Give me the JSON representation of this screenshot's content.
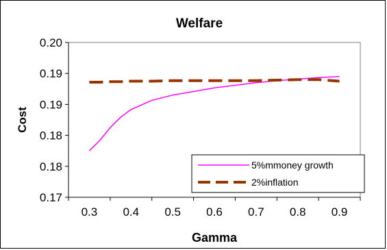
{
  "chart_data": {
    "type": "line",
    "title": "Welfare",
    "xlabel": "Gamma",
    "ylabel": "Cost",
    "xlim": [
      0.25,
      0.95
    ],
    "ylim": [
      0.17,
      0.2
    ],
    "x_ticks": [
      "0.3",
      "0.4",
      "0.5",
      "0.6",
      "0.7",
      "0.8",
      "0.9"
    ],
    "y_ticks": [
      "0.17",
      "0.18",
      "0.18",
      "0.19",
      "0.19",
      "0.20"
    ],
    "grid": false,
    "legend_position": "bottom-right",
    "x": [
      0.3,
      0.325,
      0.35,
      0.375,
      0.4,
      0.45,
      0.5,
      0.55,
      0.6,
      0.65,
      0.7,
      0.75,
      0.8,
      0.85,
      0.9
    ],
    "series": [
      {
        "name": "5%mmoney growth",
        "color": "#ff00ff",
        "style": "solid",
        "values": [
          0.179,
          0.181,
          0.1835,
          0.1855,
          0.187,
          0.1888,
          0.1898,
          0.1905,
          0.1912,
          0.1917,
          0.1922,
          0.1926,
          0.1929,
          0.1932,
          0.1934
        ]
      },
      {
        "name": "2%inflation",
        "color": "#993300",
        "style": "dashed",
        "values": [
          0.1923,
          0.1923,
          0.1924,
          0.1924,
          0.1925,
          0.1925,
          0.1926,
          0.1926,
          0.1926,
          0.1926,
          0.1926,
          0.1927,
          0.1928,
          0.1928,
          0.1925
        ]
      }
    ]
  }
}
